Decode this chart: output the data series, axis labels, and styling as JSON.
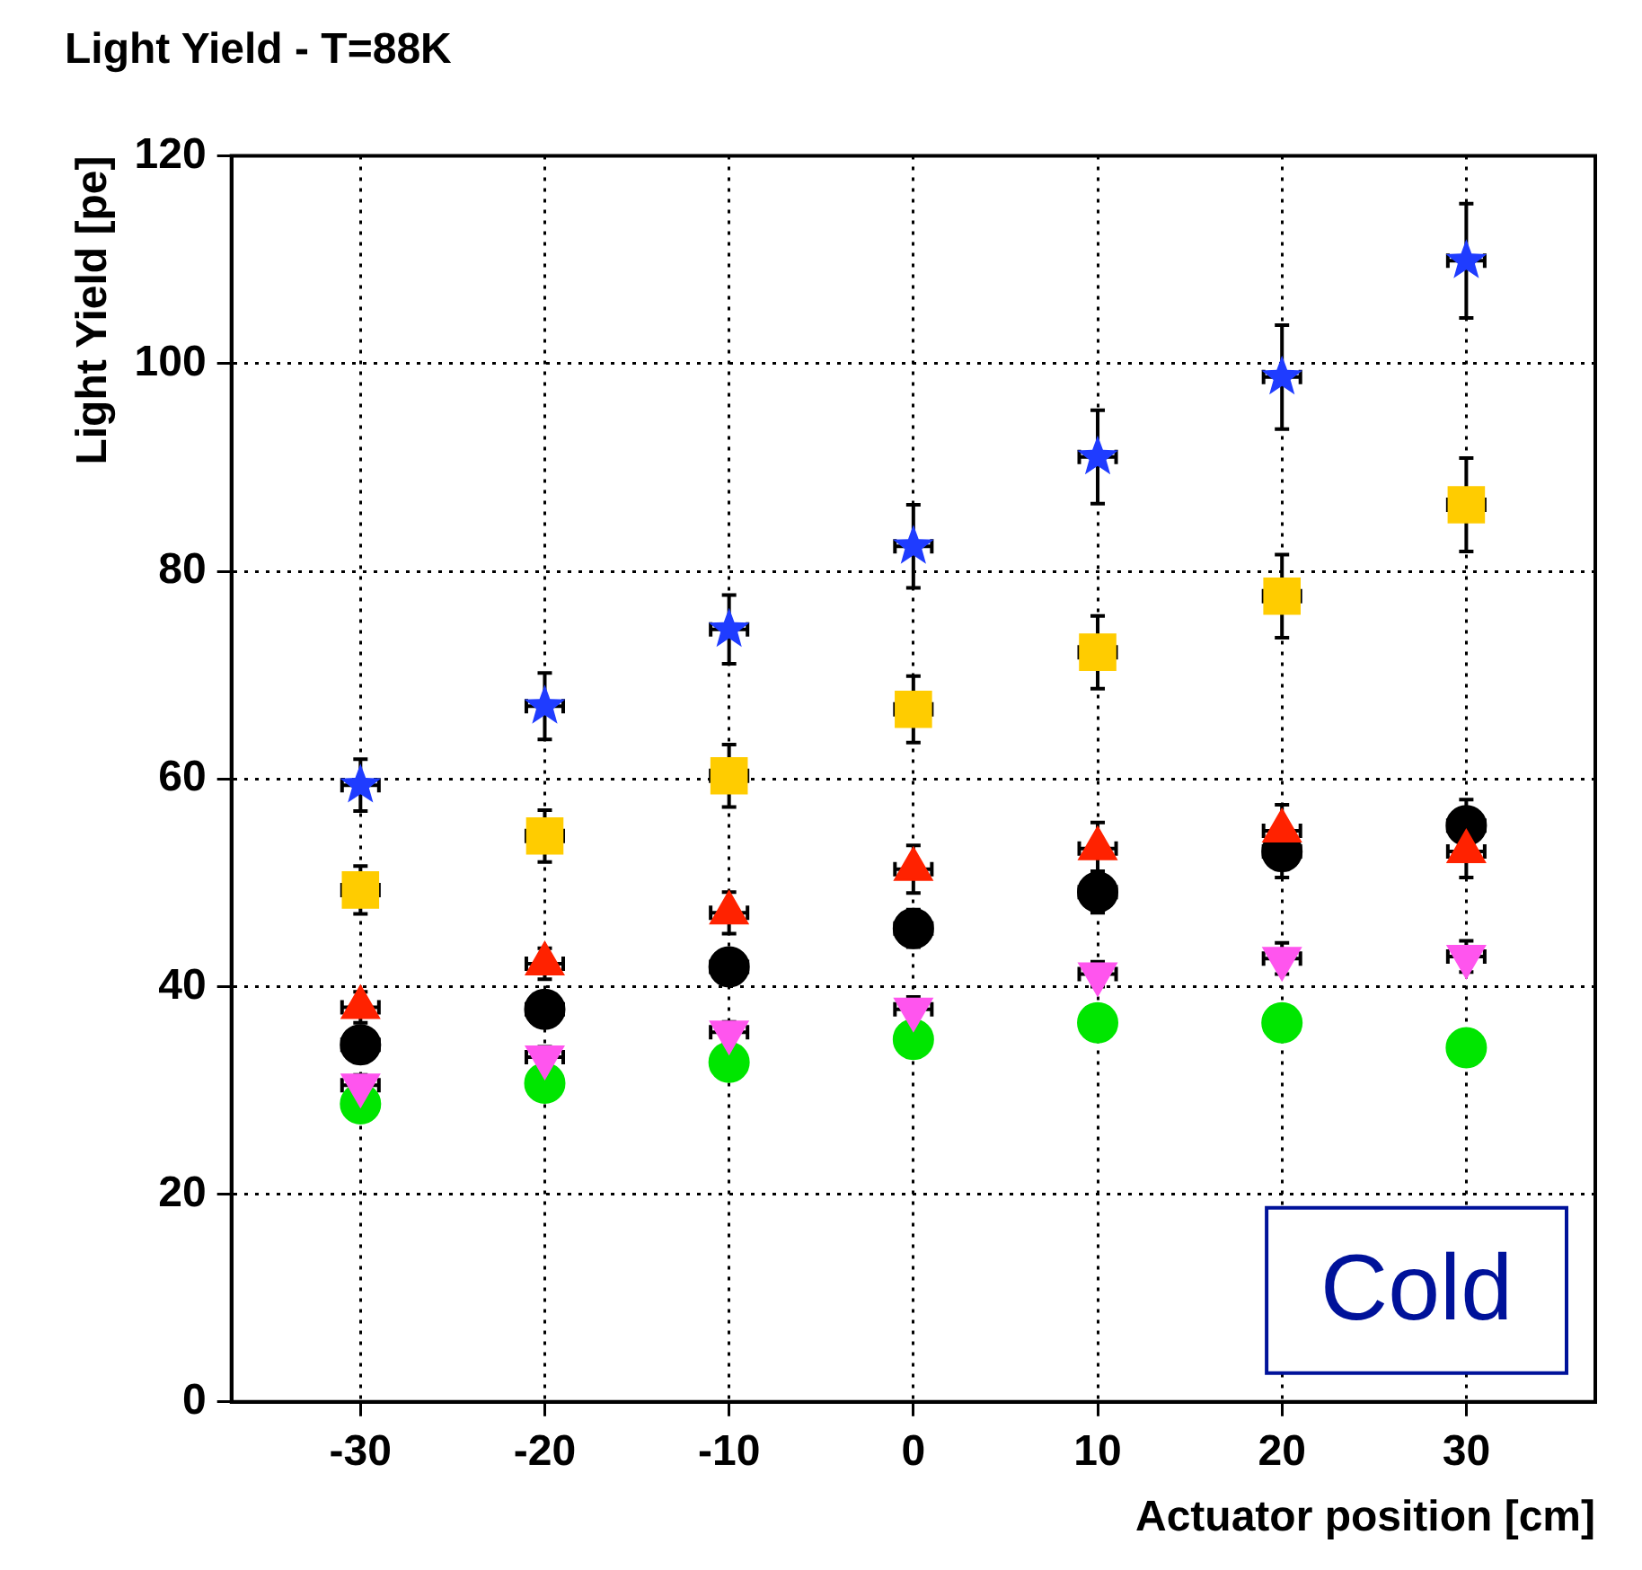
{
  "chart_data": {
    "type": "scatter",
    "title": "Light Yield - T=88K",
    "xlabel": "Actuator position [cm]",
    "ylabel": "Light Yield [pe]",
    "x": [
      -30,
      -20,
      -10,
      0,
      10,
      20,
      30
    ],
    "series": [
      {
        "color": "#1f3cff",
        "marker": "star",
        "values": [
          59.4,
          67,
          74.4,
          82.4,
          91,
          98.7,
          109.9
        ],
        "errors": [
          2.5,
          3.2,
          3.3,
          4,
          4.5,
          5,
          5.5
        ],
        "xerrors": [
          1,
          1,
          1,
          1,
          1,
          1,
          1
        ]
      },
      {
        "color": "#ffcc00",
        "marker": "square",
        "values": [
          49.3,
          54.5,
          60.3,
          66.7,
          72.2,
          77.6,
          86.4
        ],
        "errors": [
          2.3,
          2.5,
          3,
          3.2,
          3.5,
          4,
          4.5
        ],
        "xerrors": [
          1,
          1,
          1,
          1,
          1,
          1,
          1
        ]
      },
      {
        "color": "#ff2200",
        "marker": "triangle",
        "values": [
          38,
          42.2,
          47.1,
          51.3,
          53.3,
          55,
          53
        ],
        "errors": [
          1.5,
          1.5,
          2,
          2.3,
          2.5,
          2.5,
          2.5
        ],
        "xerrors": [
          1,
          1,
          1,
          1,
          1,
          1,
          1
        ]
      },
      {
        "color": "#000000",
        "marker": "circle",
        "values": [
          34.4,
          37.8,
          41.9,
          45.6,
          49.1,
          53,
          55.5
        ],
        "errors": [
          1.5,
          1.5,
          1.5,
          1.8,
          2,
          2.5,
          2.5
        ],
        "xerrors": [
          1,
          1,
          1,
          1,
          1,
          1,
          1
        ]
      },
      {
        "color": "#ff55ee",
        "marker": "triangle-down",
        "values": [
          30.5,
          33.2,
          35.6,
          37.8,
          41.2,
          42.7,
          42.9
        ],
        "errors": [
          1,
          1,
          1,
          1.2,
          1.2,
          1.5,
          1.5
        ],
        "xerrors": [
          1,
          1,
          1,
          1,
          1,
          1,
          1
        ]
      },
      {
        "color": "#00e600",
        "marker": "circle",
        "values": [
          28.7,
          30.7,
          32.7,
          34.9,
          36.5,
          36.5,
          34.1
        ]
      }
    ],
    "xlim": [
      -37,
      37
    ],
    "xticks": [
      -30,
      -20,
      -10,
      0,
      10,
      20,
      30
    ],
    "ylim": [
      0,
      120
    ],
    "yticks": [
      0,
      20,
      40,
      60,
      80,
      100,
      120
    ],
    "grid": true,
    "legend": false,
    "annotations": [
      "Cold"
    ]
  }
}
